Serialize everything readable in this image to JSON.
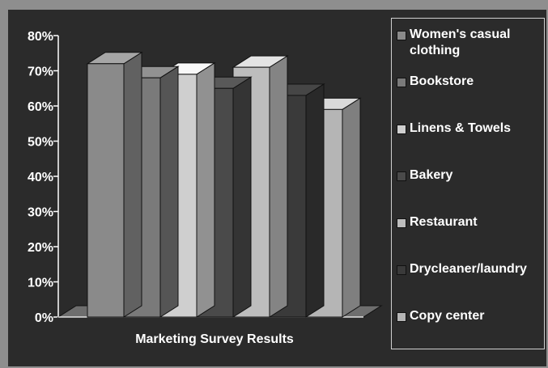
{
  "chart_data": {
    "type": "bar",
    "title": "",
    "xlabel": "Marketing Survey Results",
    "ylabel": "",
    "ylim": [
      0,
      80
    ],
    "yticks": [
      "0%",
      "10%",
      "20%",
      "30%",
      "40%",
      "50%",
      "60%",
      "70%",
      "80%"
    ],
    "grid": false,
    "legend_position": "right",
    "three_d": true,
    "series": [
      {
        "name": "Women's casual clothing",
        "value": 72,
        "color": "#8a8a8a"
      },
      {
        "name": "Bookstore",
        "value": 68,
        "color": "#7a7a7a"
      },
      {
        "name": "Linens & Towels",
        "value": 69,
        "color": "#cfcfcf"
      },
      {
        "name": "Bakery",
        "value": 65,
        "color": "#4a4a4a"
      },
      {
        "name": "Restaurant",
        "value": 71,
        "color": "#bdbdbd"
      },
      {
        "name": "Drycleaner/laundry",
        "value": 63,
        "color": "#3a3a3a"
      },
      {
        "name": "Copy center",
        "value": 59,
        "color": "#b5b5b5"
      }
    ]
  }
}
